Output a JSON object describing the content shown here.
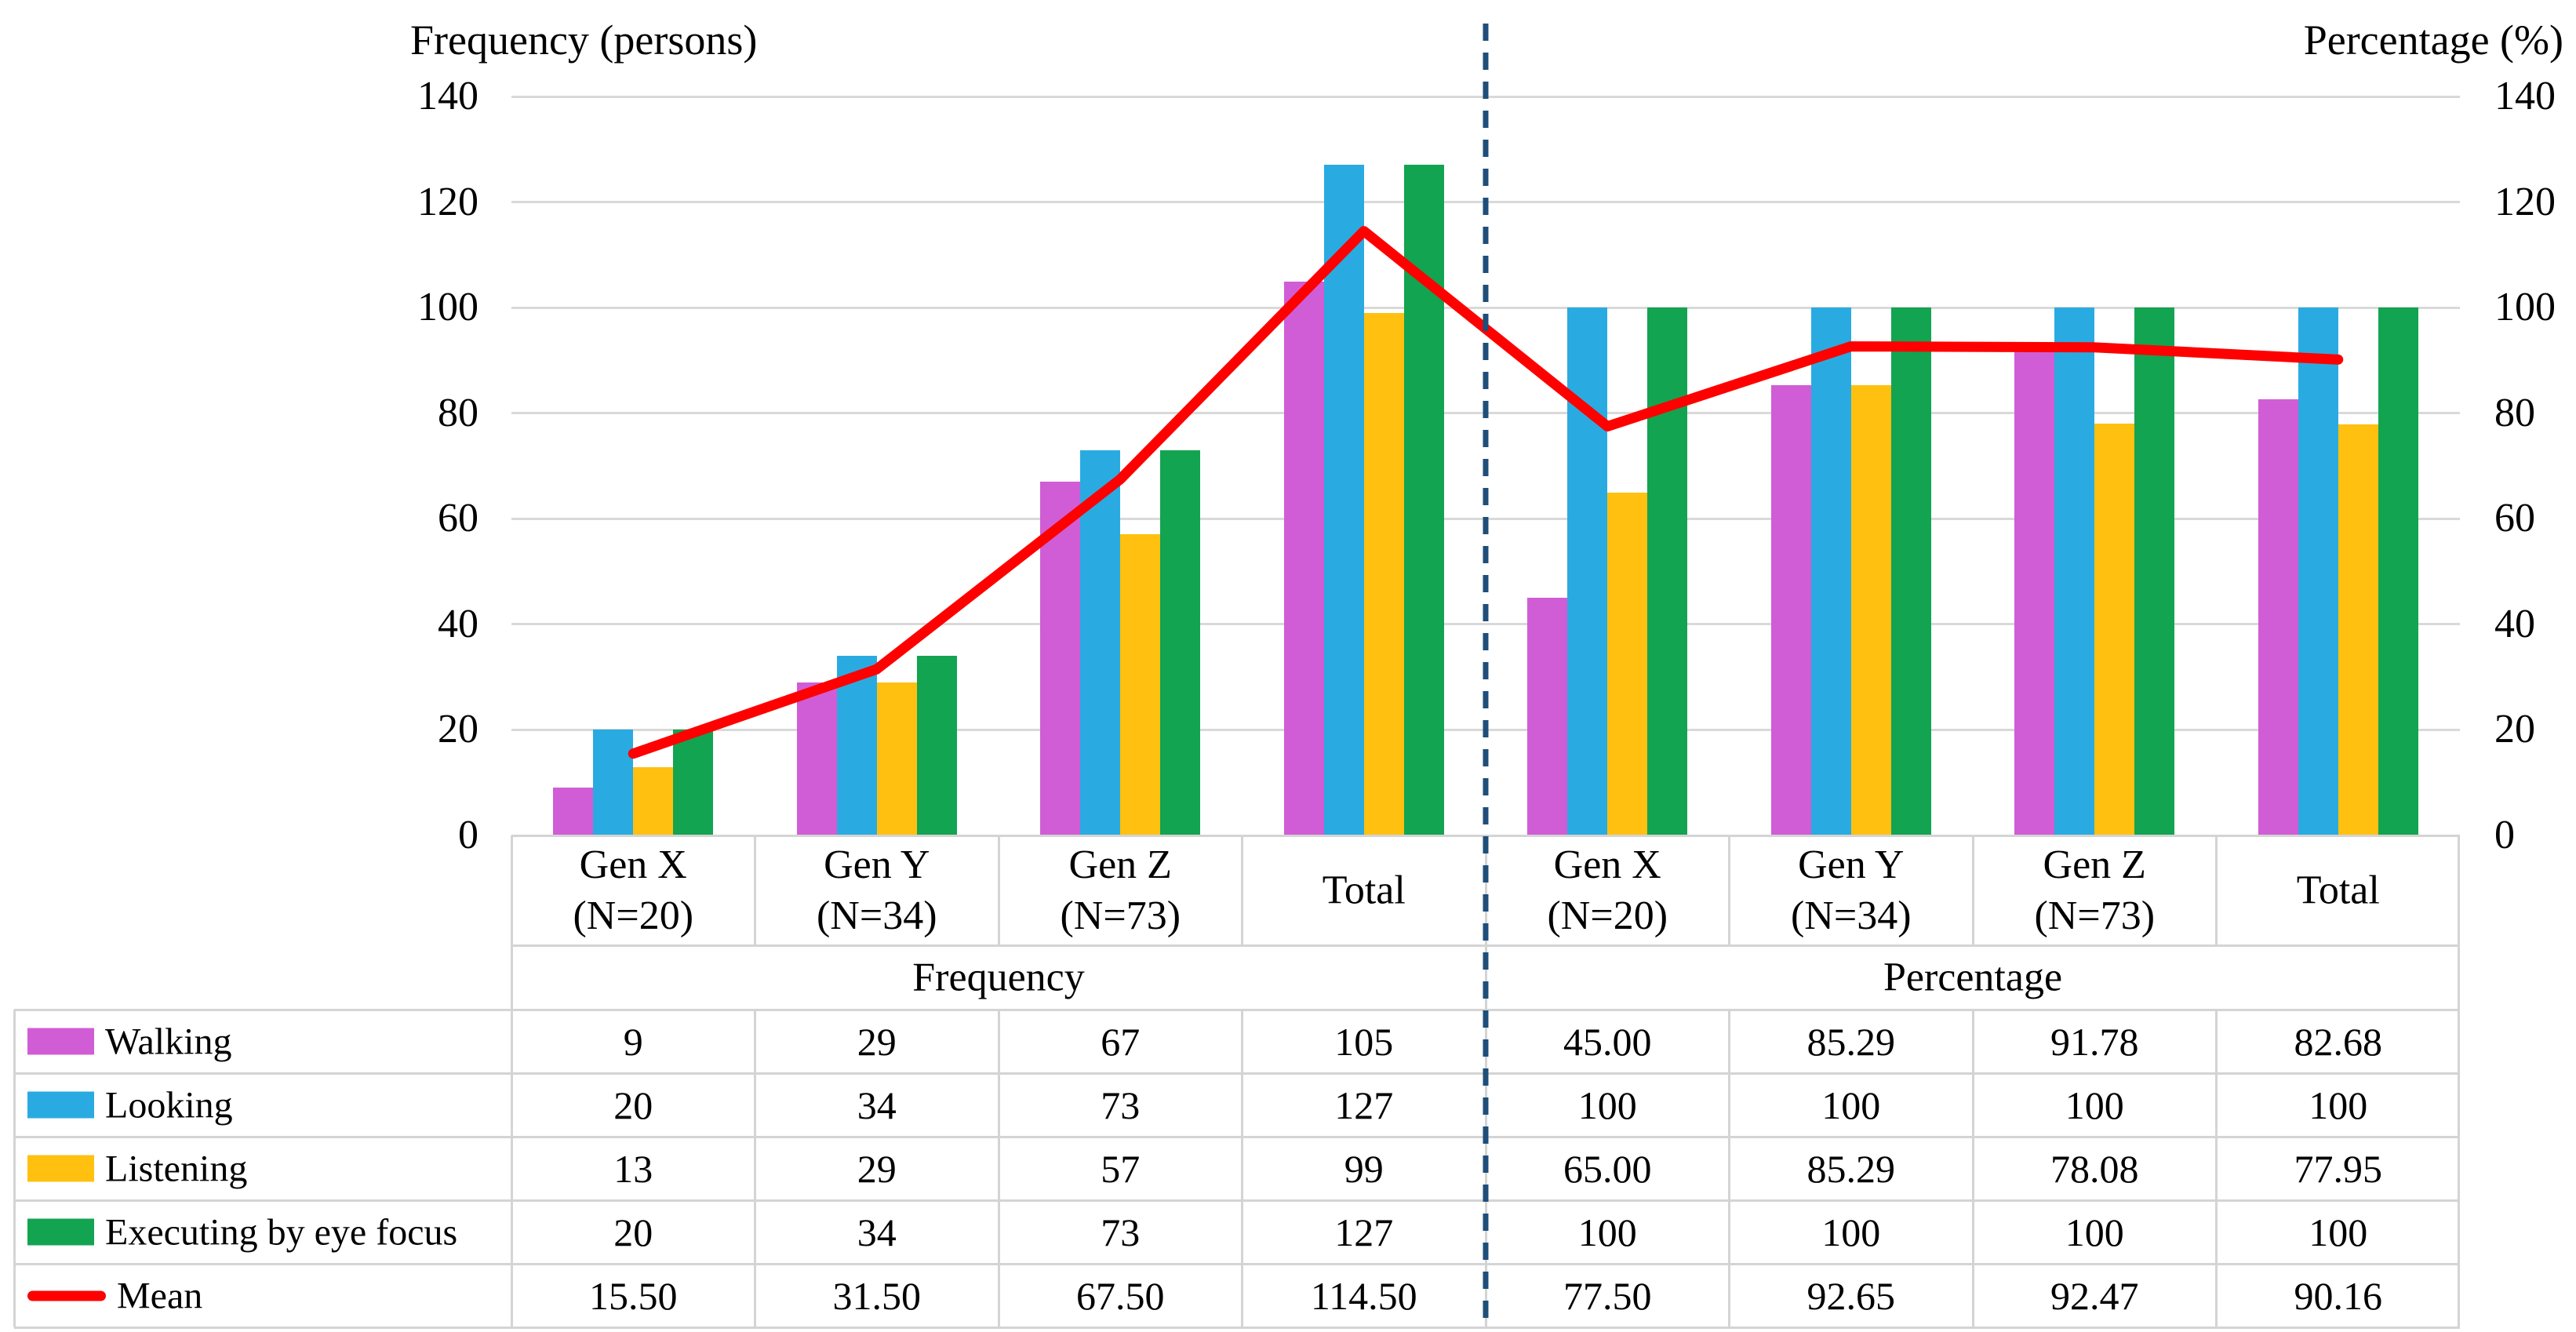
{
  "chart_data": {
    "type": "bar",
    "left_axis_title": "Frequency (persons)",
    "right_axis_title": "Percentage (%)",
    "y_ticks": [
      140,
      120,
      100,
      80,
      60,
      40,
      20,
      0
    ],
    "ylim": [
      0,
      140
    ],
    "grid": true,
    "grid_color": "#D9D9D9",
    "divider_color": "#1F4E79",
    "sections": [
      "Frequency",
      "Percentage"
    ],
    "category_lines": [
      [
        "Gen X",
        "(N=20)"
      ],
      [
        "Gen Y",
        "(N=34)"
      ],
      [
        "Gen Z",
        "(N=73)"
      ],
      [
        "Total"
      ],
      [
        "Gen X",
        "(N=20)"
      ],
      [
        "Gen Y",
        "(N=34)"
      ],
      [
        "Gen Z",
        "(N=73)"
      ],
      [
        "Total"
      ]
    ],
    "series": [
      {
        "name": "Walking",
        "color": "#D05DD5",
        "values": [
          9,
          29,
          67,
          105,
          45,
          85.29,
          91.78,
          82.68
        ],
        "display": [
          "9",
          "29",
          "67",
          "105",
          "45.00",
          "85.29",
          "91.78",
          "82.68"
        ]
      },
      {
        "name": "Looking",
        "color": "#29ABE2",
        "values": [
          20,
          34,
          73,
          127,
          100,
          100,
          100,
          100
        ],
        "display": [
          "20",
          "34",
          "73",
          "127",
          "100",
          "100",
          "100",
          "100"
        ]
      },
      {
        "name": "Listening",
        "color": "#FFC010",
        "values": [
          13,
          29,
          57,
          99,
          65,
          85.29,
          78.08,
          77.95
        ],
        "display": [
          "13",
          "29",
          "57",
          "99",
          "65.00",
          "85.29",
          "78.08",
          "77.95"
        ]
      },
      {
        "name": "Executing by eye focus",
        "color": "#12A450",
        "values": [
          20,
          34,
          73,
          127,
          100,
          100,
          100,
          100
        ],
        "display": [
          "20",
          "34",
          "73",
          "127",
          "100",
          "100",
          "100",
          "100"
        ]
      }
    ],
    "line_series": {
      "name": "Mean",
      "color": "#FF0000",
      "values": [
        15.5,
        31.5,
        67.5,
        114.5,
        77.5,
        92.65,
        92.47,
        90.16
      ],
      "display": [
        "15.50",
        "31.50",
        "67.50",
        "114.50",
        "77.50",
        "92.65",
        "92.47",
        "90.16"
      ]
    },
    "legend_position": "table-left-column"
  }
}
